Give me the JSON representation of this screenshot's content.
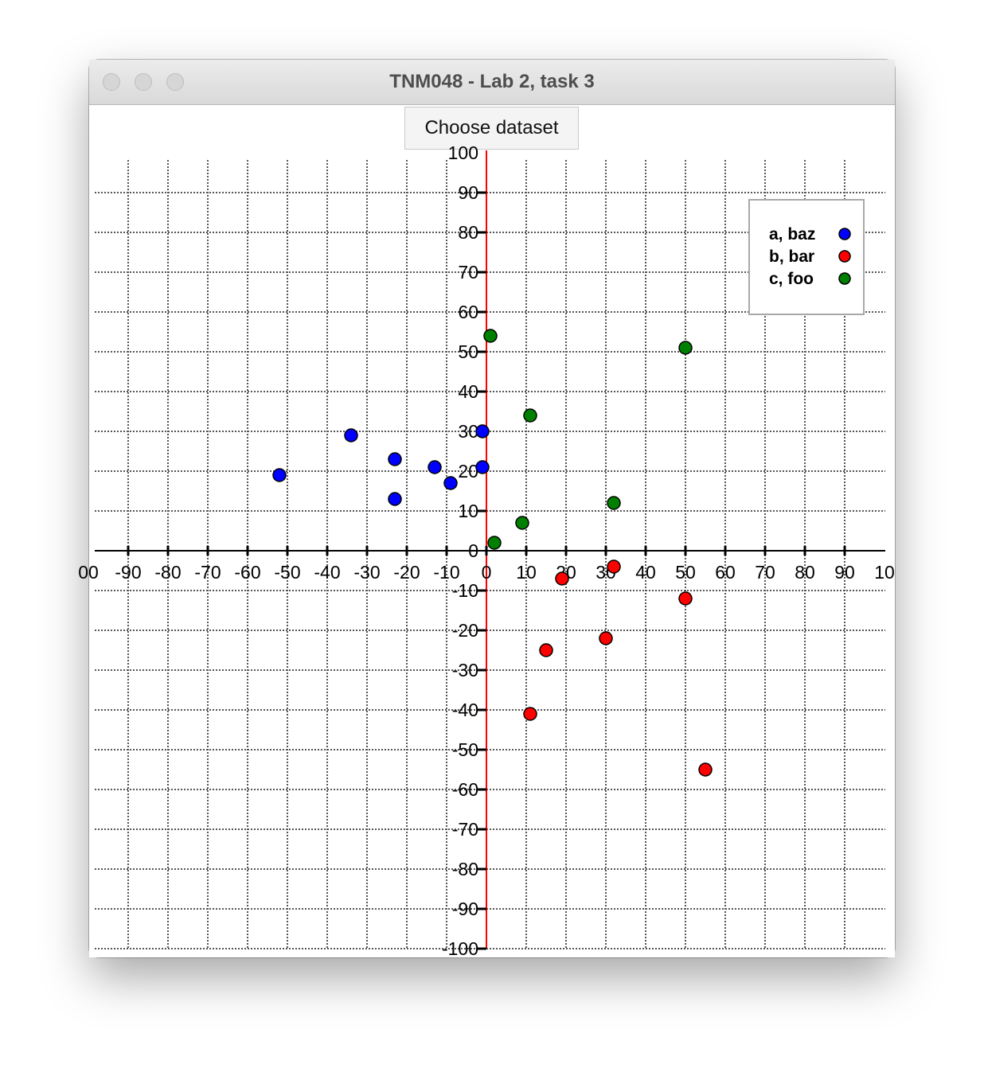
{
  "window": {
    "title": "TNM048 - Lab 2, task 3"
  },
  "toolbar": {
    "choose_label": "Choose dataset"
  },
  "colors": {
    "blue": "#0000ff",
    "red": "#ff0000",
    "green": "#008000",
    "y_axis": "#ff0000",
    "x_axis": "#000000",
    "grid": "#555555"
  },
  "chart_data": {
    "type": "scatter",
    "title": "",
    "xlabel": "",
    "ylabel": "",
    "xlim": [
      -100,
      100
    ],
    "ylim": [
      -100,
      100
    ],
    "grid": true,
    "legend_position": "top-right",
    "x_ticks": [
      "00",
      "-90",
      "-80",
      "-70",
      "-60",
      "-50",
      "-40",
      "-30",
      "-20",
      "-10",
      "0",
      "10",
      "20",
      "30",
      "40",
      "50",
      "60",
      "70",
      "80",
      "90",
      "10"
    ],
    "y_ticks": [
      "100",
      "90",
      "80",
      "70",
      "60",
      "50",
      "40",
      "30",
      "20",
      "10",
      "0",
      "-10",
      "-20",
      "-30",
      "-40",
      "-50",
      "-60",
      "-70",
      "-80",
      "-90",
      "-100"
    ],
    "series": [
      {
        "name": "a, baz",
        "color": "#0000ff",
        "points": [
          {
            "x": -52,
            "y": 19
          },
          {
            "x": -34,
            "y": 29
          },
          {
            "x": -23,
            "y": 23
          },
          {
            "x": -23,
            "y": 13
          },
          {
            "x": -13,
            "y": 21
          },
          {
            "x": -9,
            "y": 17
          },
          {
            "x": -1,
            "y": 30
          },
          {
            "x": -1,
            "y": 21
          }
        ]
      },
      {
        "name": "b, bar",
        "color": "#ff0000",
        "points": [
          {
            "x": 19,
            "y": -7
          },
          {
            "x": 32,
            "y": -4
          },
          {
            "x": 50,
            "y": -12
          },
          {
            "x": 30,
            "y": -22
          },
          {
            "x": 15,
            "y": -25
          },
          {
            "x": 11,
            "y": -41
          },
          {
            "x": 55,
            "y": -55
          }
        ]
      },
      {
        "name": "c, foo",
        "color": "#008000",
        "points": [
          {
            "x": 1,
            "y": 54
          },
          {
            "x": 50,
            "y": 51
          },
          {
            "x": 11,
            "y": 34
          },
          {
            "x": 32,
            "y": 12
          },
          {
            "x": 9,
            "y": 7
          },
          {
            "x": 2,
            "y": 2
          }
        ]
      }
    ]
  }
}
